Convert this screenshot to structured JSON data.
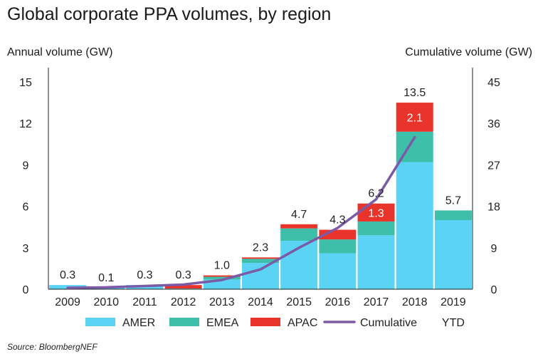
{
  "chart_data": {
    "type": "bar",
    "title": "Global corporate PPA volumes, by region",
    "ylabel": "Annual volume (GW)",
    "y2label": "Cumulative volume (GW)",
    "ylim": [
      0,
      15
    ],
    "y2lim": [
      0,
      45
    ],
    "yticks": [
      "0",
      "3",
      "6",
      "9",
      "12",
      "15"
    ],
    "y2ticks": [
      "0",
      "9",
      "18",
      "27",
      "36",
      "45"
    ],
    "categories": [
      "2009",
      "2010",
      "2011",
      "2012",
      "2013",
      "2014",
      "2015",
      "2016",
      "2017",
      "2018",
      "2019"
    ],
    "series": [
      {
        "name": "AMER",
        "color": "#5bd3f5",
        "values": [
          0.3,
          0.1,
          0.3,
          0.05,
          0.7,
          1.9,
          3.5,
          2.6,
          3.9,
          9.2,
          5.0
        ]
      },
      {
        "name": "EMEA",
        "color": "#3dbfa9",
        "values": [
          0.0,
          0.0,
          0.0,
          0.0,
          0.2,
          0.3,
          0.9,
          1.0,
          1.0,
          2.2,
          0.7
        ]
      },
      {
        "name": "APAC",
        "color": "#e8342a",
        "values": [
          0.0,
          0.0,
          0.0,
          0.25,
          0.1,
          0.1,
          0.3,
          0.7,
          1.3,
          2.1,
          0.0
        ]
      }
    ],
    "totals": [
      "0.3",
      "0.1",
      "0.3",
      "0.3",
      "1.0",
      "2.3",
      "4.7",
      "4.3",
      "6.2",
      "13.5",
      "5.7"
    ],
    "segment_labels": [
      {
        "category": "2017",
        "series": "APAC",
        "text": "1.3"
      },
      {
        "category": "2018",
        "series": "APAC",
        "text": "2.1"
      }
    ],
    "cumulative": {
      "name": "Cumulative",
      "color": "#7b5aa6",
      "x": [
        "2009",
        "2010",
        "2011",
        "2012",
        "2013",
        "2014",
        "2015",
        "2016",
        "2017",
        "2018"
      ],
      "values": [
        0.3,
        0.4,
        0.7,
        1.0,
        2.0,
        4.3,
        9.0,
        13.3,
        19.5,
        33.0
      ]
    },
    "legend": {
      "placement": "bottom",
      "ytd_label": "YTD"
    },
    "grid": false
  },
  "source": "Source: BloombergNEF"
}
